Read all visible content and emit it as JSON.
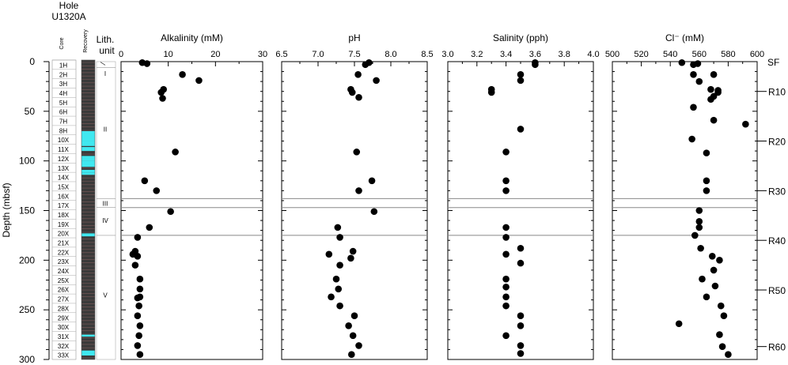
{
  "header": {
    "hole_line1": "Hole",
    "hole_line2": "U1320A"
  },
  "depth_axis": {
    "label": "Depth (mbsf)",
    "ylim": [
      0,
      300
    ],
    "major_ticks": [
      "0",
      "50",
      "100",
      "150",
      "200",
      "250",
      "300"
    ]
  },
  "core_column": {
    "header": "Core",
    "cores": [
      "1H",
      "2H",
      "3H",
      "4H",
      "5H",
      "6H",
      "7H",
      "8H",
      "10X",
      "11X",
      "12X",
      "13X",
      "14X",
      "15X",
      "16X",
      "17X",
      "18X",
      "19X",
      "20X",
      "21X",
      "22X",
      "23X",
      "24X",
      "25X",
      "26X",
      "27X",
      "28X",
      "29X",
      "30X",
      "31X",
      "32X",
      "33X"
    ]
  },
  "recovery_column": {
    "header": "Recovery",
    "dark_color": "#3a3a3a",
    "recovered_color": "#40e8f0",
    "recovered_depth_intervals": [
      [
        70,
        80
      ],
      [
        80,
        85
      ],
      [
        86,
        90
      ],
      [
        95,
        100
      ],
      [
        100,
        106
      ],
      [
        109,
        112
      ],
      [
        112,
        114
      ],
      [
        173,
        176
      ],
      [
        275,
        277
      ],
      [
        291,
        296
      ]
    ]
  },
  "lith_column": {
    "header_line1": "Lith.",
    "header_line2": "unit",
    "units": [
      "I",
      "II",
      "III",
      "IV",
      "V"
    ]
  },
  "reflectors": {
    "labels": [
      "SF",
      "R10",
      "R20",
      "R30",
      "R40",
      "R50",
      "R60"
    ]
  },
  "chart_data": [
    {
      "type": "scatter",
      "title": "Alkalinity (mM)",
      "xlim": [
        0,
        30
      ],
      "ylim": [
        0,
        300
      ],
      "x_ticks": [
        "0",
        "10",
        "20",
        "30"
      ],
      "points": [
        [
          4.5,
          1
        ],
        [
          5.5,
          2
        ],
        [
          13,
          13
        ],
        [
          16.5,
          19
        ],
        [
          9,
          28
        ],
        [
          8.5,
          31
        ],
        [
          8.8,
          37
        ],
        [
          11.5,
          91
        ],
        [
          5,
          120
        ],
        [
          7.5,
          130
        ],
        [
          10.5,
          151
        ],
        [
          6,
          167
        ],
        [
          3.5,
          177
        ],
        [
          3,
          191
        ],
        [
          2.5,
          194
        ],
        [
          3.5,
          196
        ],
        [
          3,
          205
        ],
        [
          4,
          219
        ],
        [
          4,
          229
        ],
        [
          4,
          237
        ],
        [
          3.5,
          238
        ],
        [
          3.8,
          246
        ],
        [
          3.5,
          256
        ],
        [
          4,
          266
        ],
        [
          3.8,
          276
        ],
        [
          3.5,
          286
        ],
        [
          4,
          295
        ]
      ]
    },
    {
      "type": "scatter",
      "title": "pH",
      "xlim": [
        6.5,
        8.5
      ],
      "ylim": [
        0,
        300
      ],
      "x_ticks": [
        "6.5",
        "7.0",
        "7.5",
        "8.0",
        "8.5"
      ],
      "points": [
        [
          7.7,
          1
        ],
        [
          7.65,
          3
        ],
        [
          7.55,
          13
        ],
        [
          7.8,
          19
        ],
        [
          7.45,
          28
        ],
        [
          7.47,
          31
        ],
        [
          7.56,
          36
        ],
        [
          7.53,
          91
        ],
        [
          7.74,
          120
        ],
        [
          7.56,
          130
        ],
        [
          7.77,
          151
        ],
        [
          7.27,
          167
        ],
        [
          7.3,
          177
        ],
        [
          7.48,
          191
        ],
        [
          7.15,
          194
        ],
        [
          7.45,
          198
        ],
        [
          7.3,
          205
        ],
        [
          7.25,
          219
        ],
        [
          7.28,
          229
        ],
        [
          7.18,
          237
        ],
        [
          7.3,
          246
        ],
        [
          7.5,
          256
        ],
        [
          7.42,
          266
        ],
        [
          7.48,
          276
        ],
        [
          7.56,
          286
        ],
        [
          7.46,
          295
        ]
      ]
    },
    {
      "type": "scatter",
      "title": "Salinity (pph)",
      "xlim": [
        3.0,
        4.0
      ],
      "ylim": [
        0,
        300
      ],
      "x_ticks": [
        "3.0",
        "3.2",
        "3.4",
        "3.6",
        "3.8",
        "4.0"
      ],
      "points": [
        [
          3.6,
          1
        ],
        [
          3.6,
          3
        ],
        [
          3.5,
          13
        ],
        [
          3.5,
          19
        ],
        [
          3.3,
          28
        ],
        [
          3.3,
          31
        ],
        [
          3.5,
          68
        ],
        [
          3.4,
          91
        ],
        [
          3.4,
          120
        ],
        [
          3.4,
          130
        ],
        [
          3.4,
          167
        ],
        [
          3.4,
          177
        ],
        [
          3.5,
          188
        ],
        [
          3.4,
          194
        ],
        [
          3.5,
          203
        ],
        [
          3.4,
          219
        ],
        [
          3.4,
          227
        ],
        [
          3.4,
          237
        ],
        [
          3.4,
          246
        ],
        [
          3.5,
          256
        ],
        [
          3.5,
          266
        ],
        [
          3.4,
          276
        ],
        [
          3.5,
          286
        ],
        [
          3.5,
          294
        ]
      ]
    },
    {
      "type": "scatter",
      "title": "Cl⁻ (mM)",
      "xlim": [
        500,
        600
      ],
      "ylim": [
        0,
        300
      ],
      "x_ticks": [
        "500",
        "520",
        "540",
        "560",
        "580",
        "600"
      ],
      "points": [
        [
          548,
          1
        ],
        [
          556,
          3
        ],
        [
          559,
          2
        ],
        [
          570,
          13
        ],
        [
          556,
          13
        ],
        [
          560,
          20
        ],
        [
          568,
          28
        ],
        [
          573,
          29
        ],
        [
          570,
          35
        ],
        [
          573,
          31
        ],
        [
          568,
          38
        ],
        [
          556,
          46
        ],
        [
          570,
          59
        ],
        [
          592,
          63
        ],
        [
          555,
          78
        ],
        [
          565,
          92
        ],
        [
          565,
          120
        ],
        [
          565,
          130
        ],
        [
          560,
          150
        ],
        [
          560,
          161
        ],
        [
          560,
          167
        ],
        [
          557,
          175
        ],
        [
          561,
          188
        ],
        [
          569,
          196
        ],
        [
          574,
          200
        ],
        [
          570,
          210
        ],
        [
          562,
          219
        ],
        [
          571,
          226
        ],
        [
          565,
          237
        ],
        [
          575,
          246
        ],
        [
          577,
          256
        ],
        [
          546,
          264
        ],
        [
          574,
          275
        ],
        [
          576,
          287
        ],
        [
          580,
          295
        ]
      ]
    }
  ]
}
